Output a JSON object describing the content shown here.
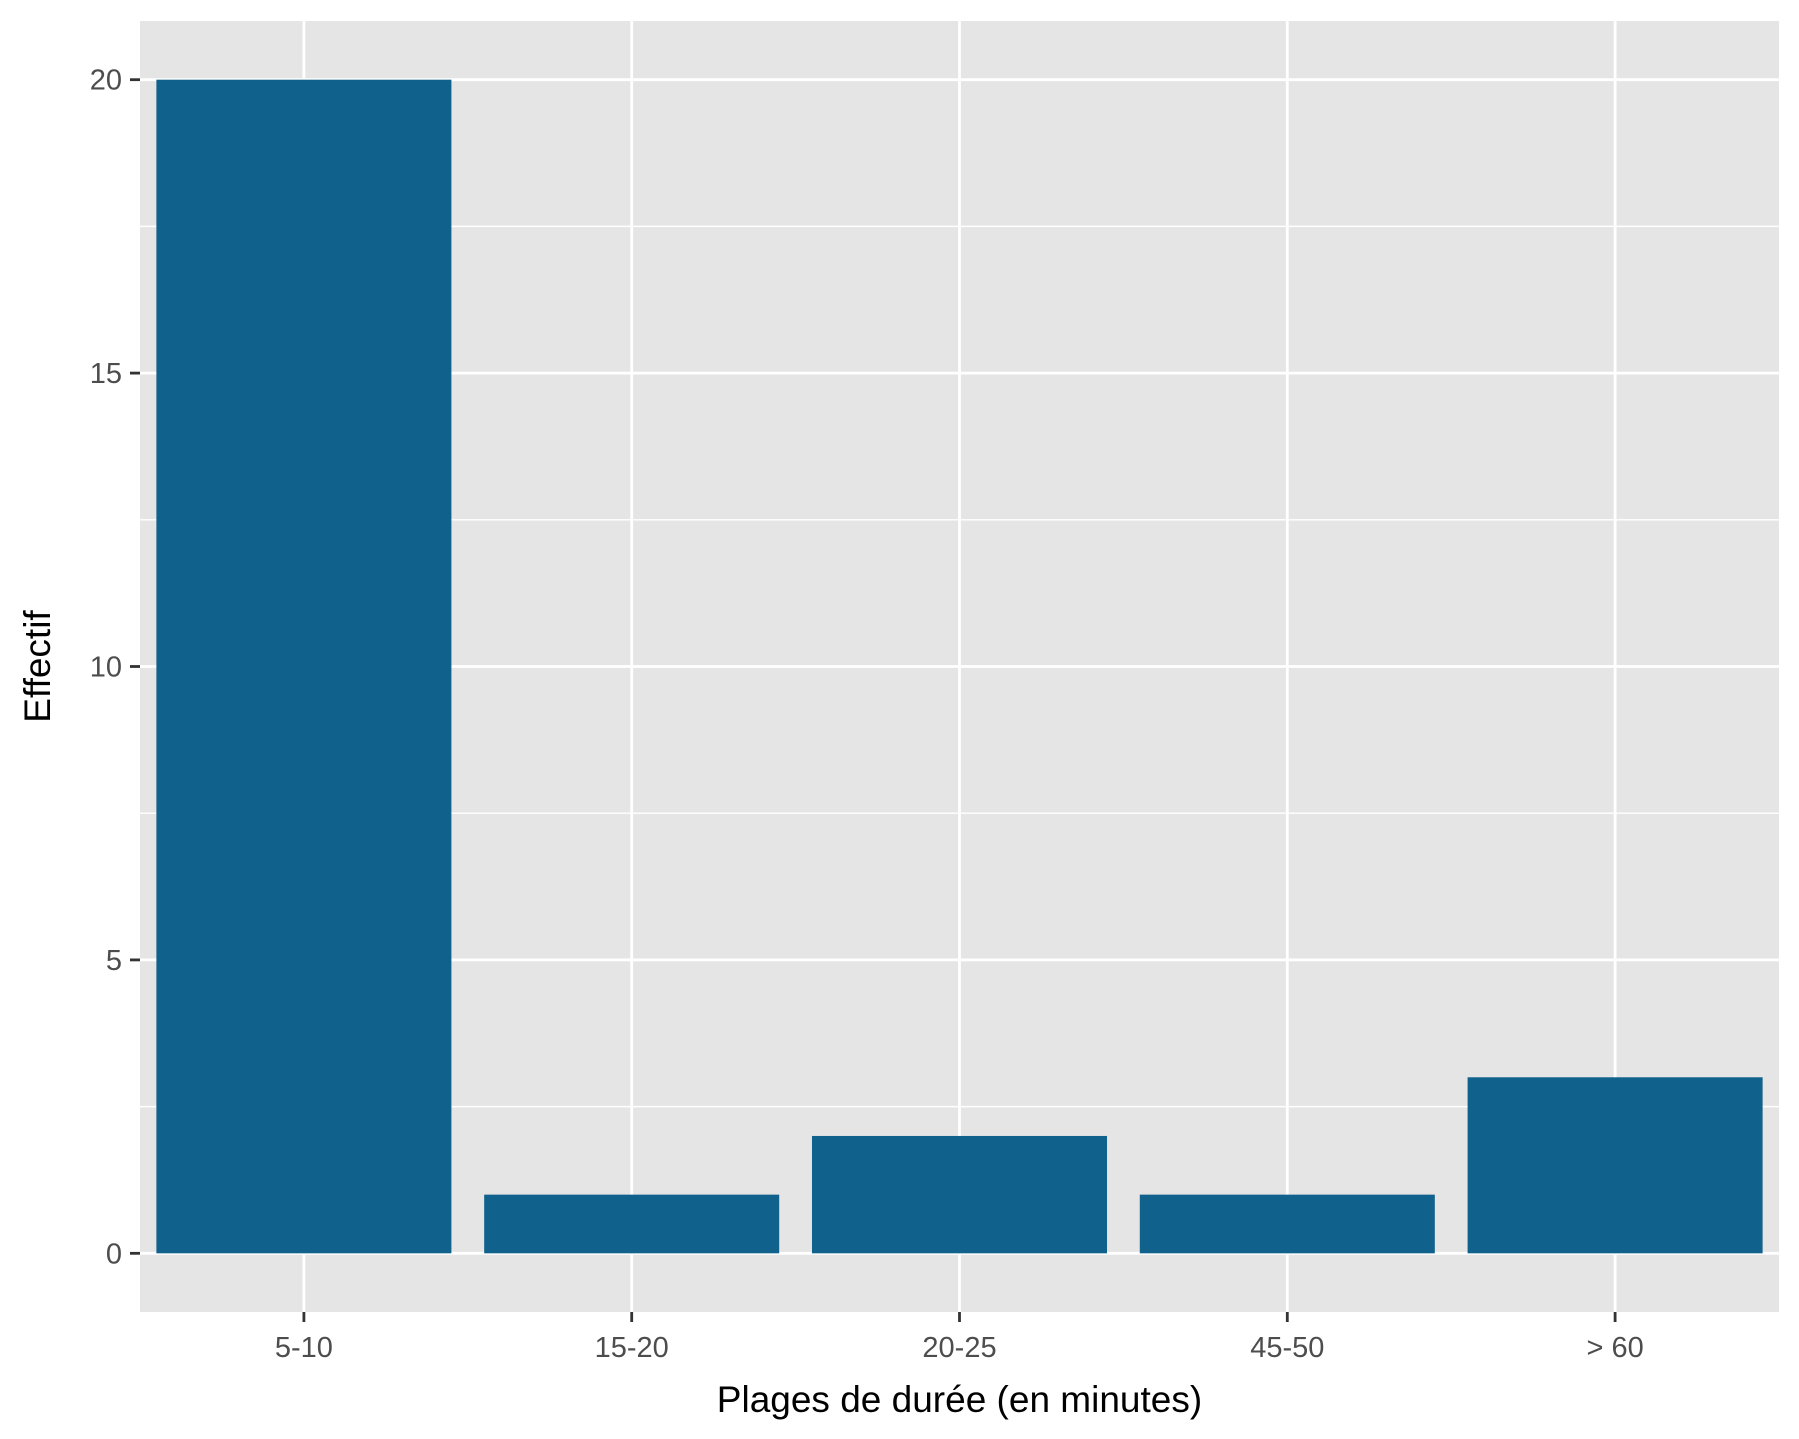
{
  "chart_data": {
    "type": "bar",
    "title": "",
    "xlabel": "Plages de durée (en minutes)",
    "ylabel": "Effectif",
    "categories": [
      "5-10",
      "15-20",
      "20-25",
      "45-50",
      "> 60"
    ],
    "values": [
      20,
      1,
      2,
      1,
      3
    ],
    "ylim": [
      -1,
      21
    ],
    "yticks": [
      0,
      5,
      10,
      15,
      20
    ],
    "grid": true,
    "legend": "none",
    "colors": {
      "bar": "#11618d",
      "panel": "#e5e5e5",
      "grid": "#ffffff",
      "tick": "#333333"
    }
  }
}
